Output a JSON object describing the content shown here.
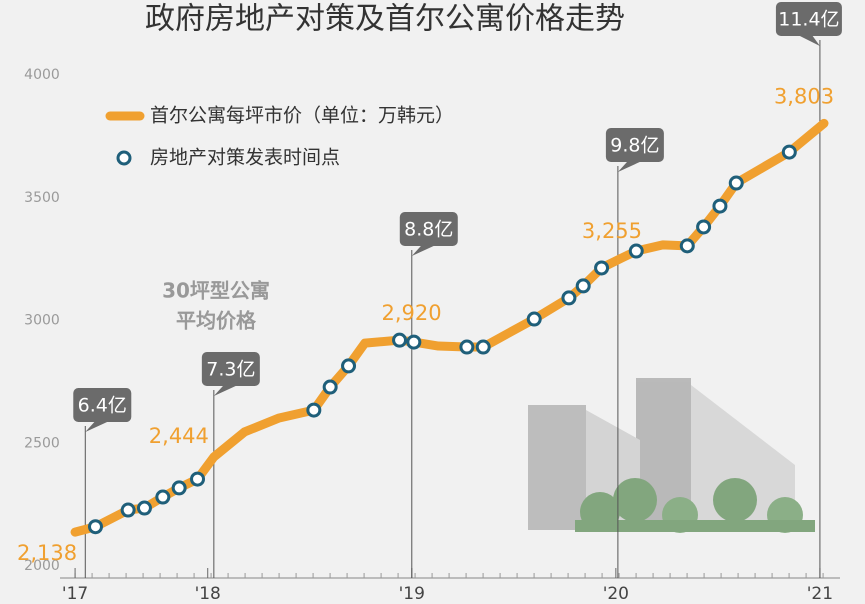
{
  "chart_data": {
    "type": "line",
    "title": "政府房地产对策及首尔公寓价格走势",
    "xlim": [
      2017.33,
      2021.02
    ],
    "xticks": [
      {
        "value": 2017.35,
        "label": "'17"
      },
      {
        "value": 2018,
        "label": "'18"
      },
      {
        "value": 2019,
        "label": "'19"
      },
      {
        "value": 2020,
        "label": "'20"
      },
      {
        "value": 2021,
        "label": "'21"
      }
    ],
    "ylim": [
      2000,
      4000
    ],
    "yticks": [
      2000,
      2500,
      3000,
      3500,
      4000
    ],
    "grid": false,
    "legend": "top-left",
    "series": [
      {
        "name": "首尔公寓每坪市价（单位：万韩元）",
        "type": "line",
        "color": "#f0a030",
        "x": [
          2017.35,
          2017.45,
          2017.61,
          2017.69,
          2017.78,
          2017.86,
          2017.95,
          2018.03,
          2018.18,
          2018.35,
          2018.52,
          2018.6,
          2018.69,
          2018.77,
          2018.94,
          2019.01,
          2019.13,
          2019.27,
          2019.35,
          2019.6,
          2019.77,
          2019.84,
          2019.93,
          2020.03,
          2020.1,
          2020.23,
          2020.35,
          2020.43,
          2020.51,
          2020.59,
          2020.85,
          2021.02
        ],
        "values": [
          2138,
          2160,
          2228,
          2236,
          2281,
          2318,
          2354,
          2444,
          2546,
          2603,
          2635,
          2729,
          2815,
          2908,
          2920,
          2912,
          2896,
          2892,
          2892,
          3006,
          3092,
          3141,
          3214,
          3255,
          3283,
          3308,
          3304,
          3381,
          3466,
          3560,
          3686,
          3803
        ]
      },
      {
        "name": "房地产对策发表时间点",
        "type": "scatter",
        "color": "#1f5f7a",
        "x": [
          2017.45,
          2017.61,
          2017.69,
          2017.78,
          2017.86,
          2017.95,
          2018.52,
          2018.6,
          2018.69,
          2018.94,
          2019.01,
          2019.27,
          2019.35,
          2019.6,
          2019.77,
          2019.84,
          2019.93,
          2020.1,
          2020.35,
          2020.43,
          2020.51,
          2020.59,
          2020.85
        ],
        "values": [
          2160,
          2228,
          2236,
          2281,
          2318,
          2354,
          2635,
          2729,
          2815,
          2920,
          2912,
          2892,
          2892,
          3006,
          3092,
          3141,
          3214,
          3283,
          3304,
          3381,
          3466,
          3560,
          3686
        ]
      }
    ],
    "value_labels": [
      {
        "x": 2017.35,
        "y": 2138,
        "label": "2,138"
      },
      {
        "x": 2018.03,
        "y": 2444,
        "label": "2,444"
      },
      {
        "x": 2018.94,
        "y": 2920,
        "label": "2,920"
      },
      {
        "x": 2020.03,
        "y": 3255,
        "label": "3,255"
      },
      {
        "x": 2021.02,
        "y": 3803,
        "label": "3,803"
      }
    ],
    "callouts": [
      {
        "x": 2017.4,
        "text": "6.4亿"
      },
      {
        "x": 2018.03,
        "text": "7.3亿"
      },
      {
        "x": 2019,
        "text": "8.8亿"
      },
      {
        "x": 2020.01,
        "text": "9.8亿"
      },
      {
        "x": 2021,
        "text": "11.4亿"
      }
    ],
    "note": [
      "30坪型公寓",
      "平均价格"
    ]
  }
}
